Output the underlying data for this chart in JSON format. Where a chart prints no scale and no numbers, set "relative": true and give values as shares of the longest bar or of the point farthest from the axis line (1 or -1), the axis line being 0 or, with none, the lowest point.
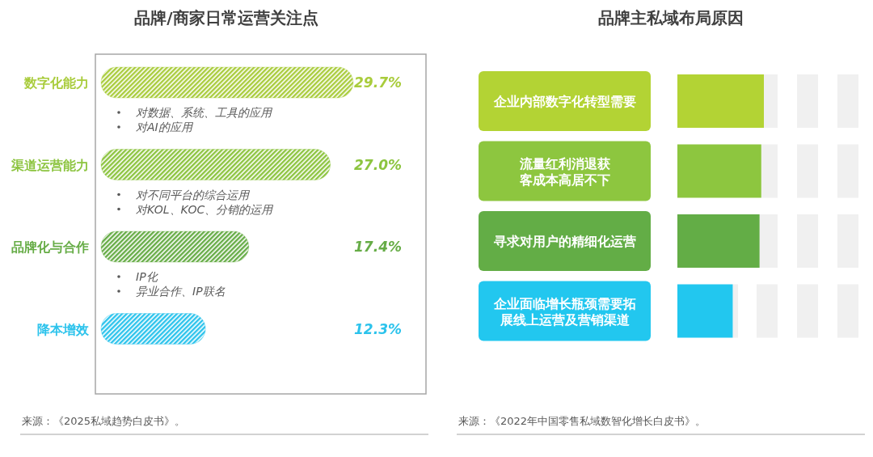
{
  "chart_data": [
    {
      "type": "bar",
      "orientation": "horizontal",
      "title": "品牌/商家日常运营关注点",
      "categories": [
        "数字化能力",
        "渠道运营能力",
        "品牌化与合作",
        "降本增效"
      ],
      "values": [
        29.7,
        27.0,
        17.4,
        12.3
      ],
      "colors": [
        "#a9cc3c",
        "#8cc43f",
        "#66ac46",
        "#2cc3ec"
      ],
      "value_labels": [
        "29.7%",
        "27.0%",
        "17.4%",
        "12.3%"
      ],
      "annotations": [
        "对数据、系统、工具的应用",
        "对AI的应用",
        "对不同平台的综合运用",
        "对KOL、KOC、分销的运用",
        "IP化",
        "异业合作、IP联名",
        "来源：《2025私域趋势白皮书》。"
      ]
    },
    {
      "type": "bar",
      "orientation": "horizontal",
      "relative": true,
      "title": "品牌主私域布局原因",
      "categories": [
        "企业内部数字化转型需要",
        "流量红利消退获客成本高居不下",
        "寻求对用户的精细化运营",
        "企业面临增长瓶颈需要拓展线上运营及营销渠道"
      ],
      "values": [
        1,
        0.97,
        0.95,
        0.64
      ],
      "colors": [
        "#b3d334",
        "#8dc63f",
        "#63ad46",
        "#22c7ef"
      ],
      "annotations": [
        "来源：《2022年中国零售私域数智化增长白皮书》。"
      ]
    }
  ]
}
